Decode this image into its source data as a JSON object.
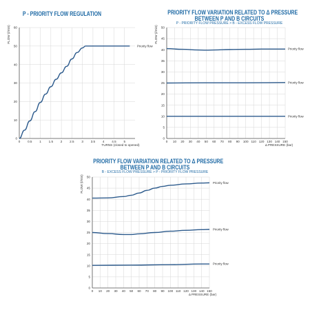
{
  "chart_data": [
    {
      "type": "line",
      "title": "P - PRIORITY FLOW REGULATION",
      "subtitle": "",
      "xlabel": "TURNS (closed to opened)",
      "ylabel": "FLOW (l/min)",
      "xlim": [
        0,
        5.5
      ],
      "ylim": [
        0,
        60
      ],
      "x_ticks": [
        "0",
        "0.5",
        "1",
        "1.5",
        "2",
        "2.5",
        "3",
        "3.5",
        "4",
        "4.5",
        "5"
      ],
      "y_ticks": [
        "0",
        "10",
        "20",
        "30",
        "40",
        "50",
        "60"
      ],
      "grid": true,
      "series": [
        {
          "name": "Priority flow",
          "x": [
            0,
            0.25,
            0.5,
            0.75,
            1.0,
            1.25,
            1.5,
            1.75,
            2.0,
            2.25,
            2.5,
            2.75,
            3.0,
            3.15,
            3.3,
            3.5,
            4.0,
            4.5,
            5.0,
            5.25
          ],
          "values": [
            0,
            4.5,
            9.5,
            14.5,
            19.5,
            24,
            28,
            32,
            35.5,
            39,
            43,
            46.5,
            49,
            50,
            50,
            50,
            50,
            50,
            50,
            50
          ]
        }
      ]
    },
    {
      "type": "line",
      "title": "PRIORITY FLOW VARIATION RELATED TO Δ PRESSURE",
      "title_line2": "BETWEEN P AND B CIRCUITS",
      "subtitle": "P - PRIORITY FLOW PRESSURE > B - EXCESS FLOW PRESSURE",
      "xlabel": "Δ PRESSURE (bar)",
      "ylabel": "FLOW (l/min)",
      "xlim": [
        0,
        150
      ],
      "ylim": [
        0,
        50
      ],
      "x_ticks": [
        "0",
        "10",
        "20",
        "30",
        "40",
        "50",
        "60",
        "70",
        "80",
        "90",
        "100",
        "110",
        "120",
        "130",
        "140",
        "150"
      ],
      "y_ticks": [
        "0",
        "5",
        "10",
        "15",
        "20",
        "25",
        "30",
        "35",
        "40",
        "45",
        "50"
      ],
      "grid": true,
      "series": [
        {
          "name": "Priority flow",
          "x": [
            0,
            20,
            40,
            50,
            60,
            80,
            100,
            120,
            140,
            150
          ],
          "values": [
            40.5,
            40.2,
            39.9,
            39.8,
            39.9,
            40.1,
            40.2,
            40.3,
            40.3,
            40.3
          ]
        },
        {
          "name": "Priority flow",
          "x": [
            0,
            50,
            100,
            150
          ],
          "values": [
            25,
            25.1,
            25.1,
            25.2
          ]
        },
        {
          "name": "Priority flow",
          "x": [
            0,
            50,
            100,
            150
          ],
          "values": [
            10,
            10,
            10,
            10
          ]
        }
      ]
    },
    {
      "type": "line",
      "title": "PRIORITY FLOW VARIATION RELATED TO Δ PRESSURE",
      "title_line2": "BETWEEN P AND B CIRCUITS",
      "subtitle": "B - EXCESS FLOW PRESSURE > P - PRIORITY FLOW PRESSURE",
      "xlabel": "Δ PRESSURE (bar)",
      "ylabel": "FLOW (l/min)",
      "xlim": [
        0,
        150
      ],
      "ylim": [
        0,
        50
      ],
      "x_ticks": [
        "0",
        "10",
        "20",
        "30",
        "40",
        "50",
        "60",
        "70",
        "80",
        "90",
        "100",
        "110",
        "120",
        "130",
        "140",
        "150"
      ],
      "y_ticks": [
        "0",
        "5",
        "10",
        "15",
        "20",
        "25",
        "30",
        "35",
        "40",
        "45",
        "50"
      ],
      "grid": true,
      "series": [
        {
          "name": "Priority flow",
          "x": [
            0,
            20,
            40,
            50,
            60,
            70,
            80,
            90,
            100,
            120,
            140,
            150
          ],
          "values": [
            40.5,
            40.6,
            41.2,
            41.8,
            42.8,
            44,
            45,
            45.8,
            46.3,
            46.9,
            47.3,
            47.4
          ]
        },
        {
          "name": "Priority flow",
          "x": [
            0,
            20,
            40,
            50,
            60,
            80,
            100,
            120,
            140,
            150
          ],
          "values": [
            25,
            24.5,
            24.1,
            24.1,
            24.4,
            25,
            25.6,
            26,
            26.3,
            26.4
          ]
        },
        {
          "name": "Priority flow",
          "x": [
            0,
            50,
            100,
            140,
            150
          ],
          "values": [
            10.2,
            10.3,
            10.5,
            10.8,
            10.8
          ]
        }
      ]
    }
  ]
}
